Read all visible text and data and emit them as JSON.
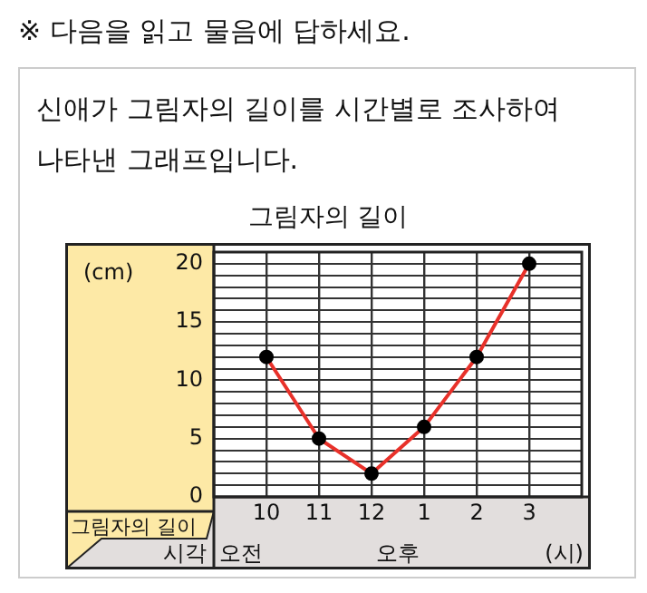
{
  "chart_data": {
    "type": "line",
    "title": "그림자의 길이",
    "subtitle": "신애가 그림자의 길이를 시간별로 조사하여 나타낸 그래프입니다.",
    "xlabel": "시각",
    "ylabel": "그림자의 길이",
    "annotations": [
      "※ 다음을 읽고 물음에 답하세요.",
      "(cm)",
      "오전",
      "오후",
      "(시)"
    ],
    "categories": [
      "10",
      "11",
      "12",
      "1",
      "2",
      "3"
    ],
    "series": [
      {
        "color": "#e8312a",
        "marker": "none",
        "values": [
          12,
          5,
          2,
          6,
          12,
          20
        ]
      },
      {
        "type": "scatter",
        "color": "#000000",
        "values": [
          12,
          5,
          2,
          6,
          12,
          20
        ]
      }
    ],
    "ylim": [
      0,
      21
    ],
    "yticks": [
      0,
      {
        "value": 1,
        "label": null
      },
      {
        "value": 2,
        "label": null
      },
      {
        "value": 3,
        "label": null
      },
      {
        "value": 4,
        "label": null
      },
      5,
      {
        "value": 6,
        "label": null
      },
      {
        "value": 7,
        "label": null
      },
      {
        "value": 8,
        "label": null
      },
      {
        "value": 9,
        "label": null
      },
      10,
      {
        "value": 11,
        "label": null
      },
      {
        "value": 12,
        "label": null
      },
      {
        "value": 13,
        "label": null
      },
      {
        "value": 14,
        "label": null
      },
      15,
      {
        "value": 16,
        "label": null
      },
      {
        "value": 17,
        "label": null
      },
      {
        "value": 18,
        "label": null
      },
      {
        "value": 19,
        "label": null
      },
      20
    ],
    "grid": true,
    "legend": false,
    "marker": "circle",
    "line_style": "solid"
  }
}
